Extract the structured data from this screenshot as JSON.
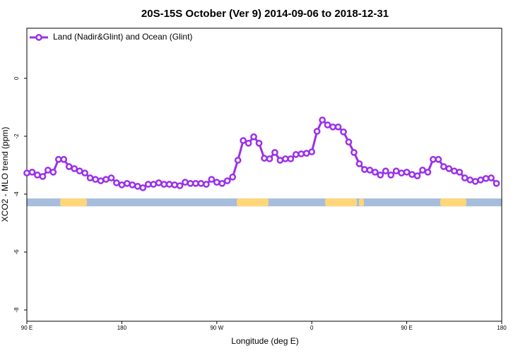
{
  "chart_data": {
    "type": "line",
    "title": "20S-15S October (Ver 9)   2014-09-06 to 2018-12-31",
    "x_label": "Longitude (deg E)",
    "y_label": "XCO2 - MLO trend (ppm)",
    "x": [
      90,
      95,
      100,
      105,
      110,
      115,
      120,
      125,
      130,
      135,
      140,
      145,
      150,
      155,
      160,
      165,
      170,
      175,
      180,
      185,
      190,
      195,
      200,
      205,
      210,
      215,
      220,
      225,
      230,
      235,
      240,
      245,
      250,
      255,
      260,
      265,
      270,
      275,
      280,
      285,
      290,
      295,
      300,
      305,
      310,
      315,
      320,
      325,
      330,
      335,
      340,
      345,
      350,
      355,
      360,
      365,
      370,
      375,
      380,
      385,
      390,
      395,
      400,
      405,
      410,
      415,
      420,
      425,
      430,
      435,
      440,
      445,
      450,
      455,
      460,
      465,
      470,
      475,
      480,
      485,
      490,
      495,
      500,
      505,
      510,
      515,
      520,
      525,
      530,
      535
    ],
    "series": [
      {
        "name": "Land (Nadir&Glint) and Ocean (Glint)",
        "color": "#9b30e8",
        "values": [
          -3.27,
          -3.24,
          -3.34,
          -3.39,
          -3.17,
          -3.24,
          -2.8,
          -2.8,
          -3.05,
          -3.12,
          -3.2,
          -3.27,
          -3.44,
          -3.49,
          -3.54,
          -3.49,
          -3.44,
          -3.61,
          -3.68,
          -3.63,
          -3.68,
          -3.73,
          -3.78,
          -3.66,
          -3.66,
          -3.61,
          -3.66,
          -3.66,
          -3.68,
          -3.71,
          -3.59,
          -3.63,
          -3.63,
          -3.63,
          -3.66,
          -3.49,
          -3.59,
          -3.63,
          -3.54,
          -3.41,
          -2.83,
          -2.15,
          -2.24,
          -2.02,
          -2.24,
          -2.76,
          -2.78,
          -2.56,
          -2.83,
          -2.78,
          -2.78,
          -2.63,
          -2.61,
          -2.59,
          -2.54,
          -1.83,
          -1.44,
          -1.61,
          -1.68,
          -1.68,
          -1.85,
          -2.2,
          -2.56,
          -2.95,
          -3.15,
          -3.17,
          -3.24,
          -3.34,
          -3.2,
          -3.34,
          -3.2,
          -3.27,
          -3.24,
          -3.32,
          -3.37,
          -3.17,
          -3.24,
          -2.8,
          -2.8,
          -3.05,
          -3.12,
          -3.2,
          -3.24,
          -3.44,
          -3.51,
          -3.56,
          -3.51,
          -3.46,
          -3.44,
          -3.63
        ]
      }
    ],
    "xlim": [
      90,
      540
    ],
    "xticks": [
      {
        "value": 90,
        "label": "90 E"
      },
      {
        "value": 180,
        "label": "180"
      },
      {
        "value": 270,
        "label": "90 W"
      },
      {
        "value": 360,
        "label": "0"
      },
      {
        "value": 450,
        "label": "90 E"
      },
      {
        "value": 540,
        "label": "180"
      }
    ],
    "ylim": [
      -8.39,
      1.73
    ],
    "yticks": [
      0,
      -2,
      -4,
      -6,
      -8
    ],
    "legend": "topleft",
    "band_ylim": [
      -4.15,
      -4.42
    ],
    "ocean_color": "#a6bddb",
    "land_color": "#ffd77a",
    "land_ranges": [
      [
        121.5,
        146.9
      ],
      [
        288.9,
        319
      ],
      [
        372.6,
        402.7
      ],
      [
        404.7,
        409.4
      ],
      [
        481.7,
        506.5
      ]
    ]
  }
}
